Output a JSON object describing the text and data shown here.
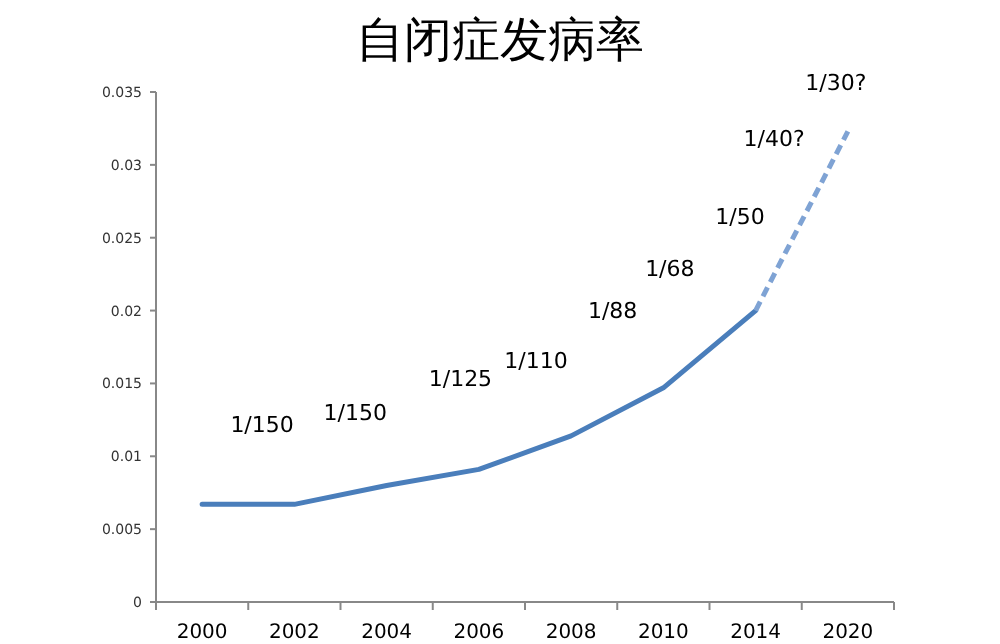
{
  "chart_data": {
    "type": "line",
    "title": "自闭症发病率",
    "categories": [
      "2000",
      "2002",
      "2004",
      "2006",
      "2008",
      "2010",
      "2014",
      "2020"
    ],
    "series": [
      {
        "color": "#4a7ebb",
        "line_style": "solid",
        "values": [
          0.0067,
          0.0067,
          0.008,
          0.0091,
          0.0114,
          0.0147,
          0.02,
          null
        ]
      },
      {
        "color": "#7fa3d4",
        "line_style": "dashed",
        "values": [
          null,
          null,
          null,
          null,
          null,
          null,
          0.02,
          0.0323
        ]
      }
    ],
    "ylim": [
      0,
      0.035
    ],
    "yticks": [
      0,
      0.005,
      0.01,
      0.015,
      0.02,
      0.025,
      0.03,
      0.035
    ],
    "annotations": [
      "1/150",
      "1/150",
      "1/125",
      "1/110",
      "1/88",
      "1/68",
      "1/50",
      "1/40?",
      "1/30?"
    ],
    "grid": false,
    "marker": "none"
  }
}
